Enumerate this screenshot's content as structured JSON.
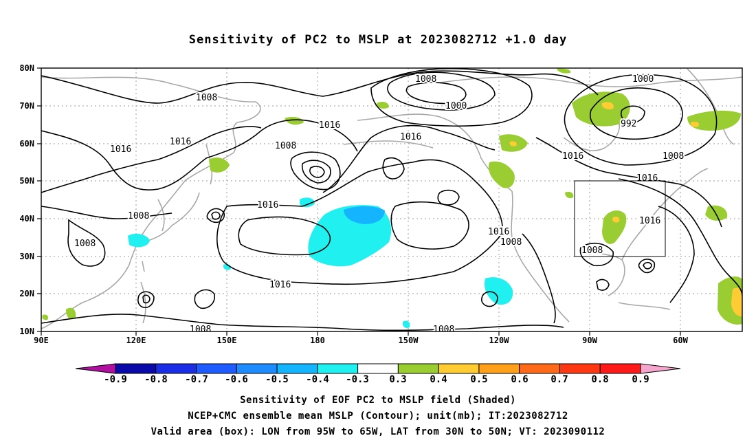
{
  "title": "Sensitivity of PC2 to MSLP at 2023082712 +1.0 day",
  "map": {
    "lon_range": [
      90,
      310
    ],
    "lat_range": [
      10,
      80
    ],
    "x_ticks": [
      "90E",
      "120E",
      "150E",
      "180",
      "150W",
      "120W",
      "90W",
      "60W"
    ],
    "y_ticks": [
      "10N",
      "20N",
      "30N",
      "40N",
      "50N",
      "60N",
      "70N",
      "80N"
    ],
    "gridlines": "dotted",
    "valid_box": {
      "lon_from": "95W",
      "lon_to": "65W",
      "lat_from": "30N",
      "lat_to": "50N"
    },
    "contour_labels": [
      "1008",
      "1016",
      "1016",
      "1008",
      "1016",
      "1008",
      "1016",
      "1008",
      "1008",
      "1000",
      "1016",
      "1016",
      "1016",
      "1008",
      "1008",
      "1008",
      "1000",
      "992",
      "1016",
      "1008",
      "1016",
      "1016",
      "1008",
      "1008"
    ]
  },
  "colorbar": {
    "labels": [
      "-0.9",
      "-0.8",
      "-0.7",
      "-0.6",
      "-0.5",
      "-0.4",
      "-0.3",
      "0.3",
      "0.4",
      "0.5",
      "0.6",
      "0.7",
      "0.8",
      "0.9"
    ],
    "colors": [
      "#0a0aa8",
      "#1a2ee6",
      "#1e5cff",
      "#1e8cff",
      "#14b4ff",
      "#20f0f0",
      "#ffffff",
      "#9acd32",
      "#ffcc33",
      "#ff9f1a",
      "#ff6a1a",
      "#ff3814",
      "#ff1a1a"
    ],
    "end_low": "#b00fa0",
    "end_high": "#f5a6cc"
  },
  "captions": [
    "Sensitivity of EOF PC2 to MSLP field (Shaded)",
    "NCEP+CMC ensemble mean MSLP (Contour); unit(mb); IT:2023082712",
    "Valid area (box): LON from 95W to 65W, LAT from 30N to 50N; VT: 2023090112"
  ]
}
